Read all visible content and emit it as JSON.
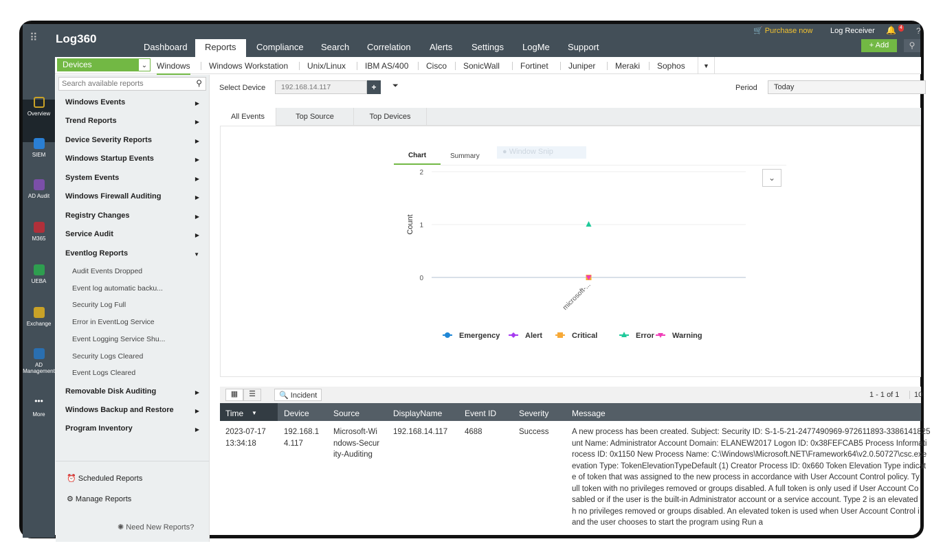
{
  "header": {
    "logo": "Log360",
    "purchase": "Purchase now",
    "log_receiver": "Log Receiver",
    "notifications": "4",
    "help": "?",
    "add": "+ Add",
    "nav": [
      "Dashboard",
      "Reports",
      "Compliance",
      "Search",
      "Correlation",
      "Alerts",
      "Settings",
      "LogMe",
      "Support"
    ],
    "active_nav": "Reports"
  },
  "rail": [
    "Overview",
    "SIEM",
    "AD Audit",
    "M365",
    "UEBA",
    "Exchange",
    "AD Management",
    "More"
  ],
  "rail_colors": [
    "#c9a227",
    "#2a7fd4",
    "#7b4fa8",
    "#b0303a",
    "#2e9e4f",
    "#c9a227",
    "#2a6fb0"
  ],
  "subnav": {
    "category": "Devices",
    "items": [
      "Windows",
      "Windows Workstation",
      "Unix/Linux",
      "IBM AS/400",
      "Cisco",
      "SonicWall",
      "Fortinet",
      "Juniper",
      "Meraki",
      "Sophos"
    ],
    "active": "Windows"
  },
  "sidebar": {
    "search_placeholder": "Search available reports",
    "items": [
      "Windows Events",
      "Trend Reports",
      "Device Severity Reports",
      "Windows Startup Events",
      "System Events",
      "Windows Firewall Auditing",
      "Registry Changes",
      "Service Audit",
      "Eventlog Reports"
    ],
    "subitems": [
      "Audit Events Dropped",
      "Event log automatic backu...",
      "Security Log Full",
      "Error in EventLog Service",
      "Event Logging Service Shu...",
      "Security Logs Cleared",
      "Event Logs Cleared"
    ],
    "items2": [
      "Removable Disk Auditing",
      "Windows Backup and Restore",
      "Program Inventory"
    ],
    "scheduled": "Scheduled Reports",
    "manage": "Manage Reports",
    "need_new": "Need New Reports?"
  },
  "filter": {
    "device_label": "Select Device",
    "device_value": "192.168.14.117",
    "period_label": "Period",
    "period_value": "Today"
  },
  "tabs": [
    "All Events",
    "Top Source",
    "Top Devices"
  ],
  "chart_tabs": [
    "Chart",
    "Summary"
  ],
  "overlay": "Window Snip",
  "chart_data": {
    "type": "scatter",
    "ylabel": "Count",
    "ylim": [
      0,
      2
    ],
    "yticks": [
      "0",
      "1",
      "2"
    ],
    "categories": [
      "microsoft-..."
    ],
    "series": [
      {
        "name": "Emergency",
        "color": "#1f87d6",
        "values": [
          0
        ]
      },
      {
        "name": "Alert",
        "color": "#a63bf0",
        "values": [
          0
        ]
      },
      {
        "name": "Critical",
        "color": "#f7a937",
        "values": [
          0
        ]
      },
      {
        "name": "Error",
        "color": "#1fc99a",
        "values": [
          1
        ]
      },
      {
        "name": "Warning",
        "color": "#f03db8",
        "values": [
          0
        ]
      }
    ],
    "legend": "bottom",
    "grid": true
  },
  "table": {
    "incident": "Incident",
    "pagination": "1 - 1 of 1",
    "page_size": "10",
    "columns": [
      "Time",
      "Device",
      "Source",
      "DisplayName",
      "Event ID",
      "Severity",
      "Message"
    ],
    "rows": [
      {
        "time": [
          "2023-07-17",
          "13:34:18"
        ],
        "device": [
          "192.168.1",
          "4.117"
        ],
        "source": [
          "Microsoft-Wi",
          "ndows-Secur",
          "ity-Auditing"
        ],
        "display": "192.168.14.117",
        "event_id": "4688",
        "severity": "Success",
        "message": [
          "A new process has been created. Subject: Security ID: S-1-5-21-2477490969-972611893-3386141825",
          "unt Name: Administrator Account Domain: ELANEW2017 Logon ID: 0x38FEFCAB5 Process Informati",
          "rocess ID: 0x1150 New Process Name: C:\\Windows\\Microsoft.NET\\Framework64\\v2.0.50727\\csc.exe",
          "evation Type: TokenElevationTypeDefault (1) Creator Process ID: 0x660 Token Elevation Type indicat",
          "e of token that was assigned to the new process in accordance with User Account Control policy. Ty",
          "ull token with no privileges removed or groups disabled. A full token is only used if User Account Co",
          "sabled or if the user is the built-in Administrator account or a service account. Type 2 is an elevated",
          "h no privileges removed or groups disabled. An elevated token is used when User Account Control i",
          "and the user chooses to start the program using Run a"
        ]
      }
    ]
  }
}
